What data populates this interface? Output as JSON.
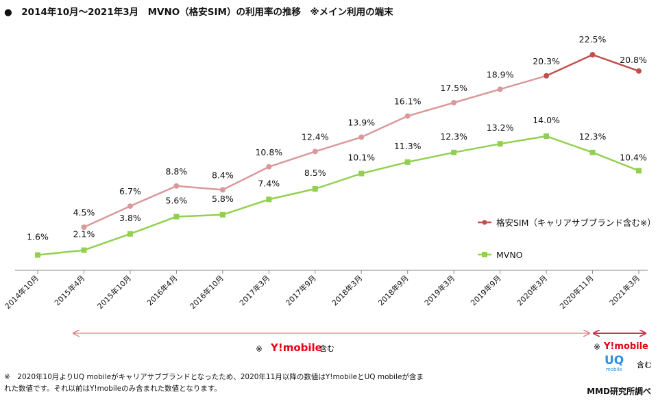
{
  "title": "●　2014年10月～2021年3月　MVNO（格安SIM）の利用率の推移　※メイン利用の端末",
  "chart_data": {
    "type": "line",
    "categories": [
      "2014年10月",
      "2015年4月",
      "2015年10月",
      "2016年4月",
      "2016年10月",
      "2017年3月",
      "2017年9月",
      "2018年3月",
      "2018年9月",
      "2019年3月",
      "2019年9月",
      "2020年3月",
      "2020年11月",
      "2021年3月"
    ],
    "ylim": [
      0,
      25
    ],
    "grid": false,
    "legend_position": "right",
    "series": [
      {
        "name": "格安SIM（キャリアサブブランド含む※）",
        "marker": "circle",
        "color_before": "#D9999A",
        "color_after": "#C0504D",
        "values": [
          null,
          4.5,
          6.7,
          8.8,
          8.4,
          10.8,
          12.4,
          13.9,
          16.1,
          17.5,
          18.9,
          20.3,
          22.5,
          20.8
        ],
        "labels": [
          "",
          "4.5%",
          "6.7%",
          "8.8%",
          "8.4%",
          "10.8%",
          "12.4%",
          "13.9%",
          "16.1%",
          "17.5%",
          "18.9%",
          "20.3%",
          "22.5%",
          "20.8%"
        ]
      },
      {
        "name": "MVNO",
        "marker": "square",
        "color": "#92D050",
        "values": [
          1.6,
          2.1,
          3.8,
          5.6,
          5.8,
          7.4,
          8.5,
          10.1,
          11.3,
          12.3,
          13.2,
          14.0,
          12.3,
          10.4
        ],
        "labels": [
          "1.6%",
          "2.1%",
          "3.8%",
          "5.6%",
          "5.8%",
          "7.4%",
          "8.5%",
          "10.1%",
          "11.3%",
          "12.3%",
          "13.2%",
          "14.0%",
          "12.3%",
          "10.4%"
        ]
      }
    ]
  },
  "annotations": {
    "range1": {
      "mark": "※",
      "brand": "Y!mobile",
      "suffix": "含む",
      "color": "#E07A7A"
    },
    "range2": {
      "mark": "※",
      "brand": "Y!mobile",
      "brand2": "UQ",
      "brand2_sub": "mobile",
      "suffix": "含む",
      "color": "#C0394B"
    }
  },
  "colors": {
    "ymobile": "#E60012",
    "uq": "#2D8FE0"
  },
  "footnote": "※　2020年10月よりUQ mobileがキャリアサブブランドとなったため、2020年11月以降の数値はY!mobileとUQ mobileが含まれた数値です。それ以前はY!mobileのみ含まれた数値となります。",
  "credit": "MMD研究所調べ"
}
